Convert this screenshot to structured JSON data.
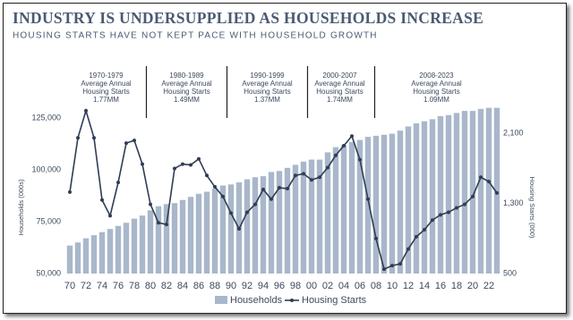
{
  "chart_data": {
    "type": "bar-line",
    "title": "INDUSTRY IS UNDERSUPPLIED AS HOUSEHOLDS INCREASE",
    "subtitle": "HOUSING STARTS HAVE NOT KEPT PACE WITH HOUSEHOLD GROWTH",
    "y_label": "Households (000s)",
    "y2_label": "Housing Starts (000)",
    "categories": [
      "70",
      null,
      "72",
      null,
      "74",
      null,
      "76",
      null,
      "78",
      null,
      "80",
      null,
      "82",
      null,
      "84",
      null,
      "86",
      null,
      "88",
      null,
      "90",
      null,
      "92",
      null,
      "94",
      null,
      "96",
      null,
      "98",
      null,
      "00",
      null,
      "02",
      null,
      "04",
      null,
      "06",
      null,
      "08",
      null,
      "10",
      null,
      "12",
      null,
      "14",
      null,
      "16",
      null,
      "18",
      null,
      "20",
      null,
      "22",
      null
    ],
    "series": [
      {
        "name": "Households",
        "type": "bar",
        "color": "#a9b7cb",
        "values": [
          63500,
          65000,
          67000,
          68500,
          70000,
          71500,
          73000,
          74500,
          76500,
          78000,
          80500,
          82500,
          83500,
          84000,
          85500,
          87000,
          88500,
          89500,
          91000,
          92500,
          93000,
          94000,
          95500,
          96500,
          97000,
          99000,
          99500,
          101000,
          102500,
          104000,
          105000,
          105000,
          108500,
          111000,
          112000,
          113500,
          114500,
          116000,
          116500,
          117000,
          117500,
          119000,
          121000,
          122500,
          123500,
          124500,
          126000,
          126500,
          127500,
          128500,
          128500,
          129500,
          130000,
          130000
        ]
      },
      {
        "name": "Housing Starts",
        "type": "line",
        "axis": "y2",
        "color": "#2f3d55",
        "values": [
          1430,
          2050,
          2360,
          2050,
          1340,
          1160,
          1540,
          1990,
          2020,
          1750,
          1290,
          1080,
          1060,
          1700,
          1750,
          1740,
          1810,
          1620,
          1490,
          1380,
          1190,
          1010,
          1200,
          1290,
          1460,
          1350,
          1480,
          1470,
          1620,
          1640,
          1570,
          1600,
          1710,
          1850,
          1960,
          2070,
          1800,
          1350,
          900,
          550,
          590,
          610,
          780,
          920,
          1000,
          1110,
          1170,
          1200,
          1250,
          1290,
          1380,
          1600,
          1550,
          1420
        ]
      }
    ],
    "ylim": [
      50000,
      132000
    ],
    "yticks": [
      {
        "value": 50000,
        "label": "50,000"
      },
      {
        "value": 75000,
        "label": "75,000"
      },
      {
        "value": 100000,
        "label": "100,000"
      },
      {
        "value": 125000,
        "label": "125,000"
      }
    ],
    "y2lim": [
      500,
      2440
    ],
    "y2ticks": [
      500,
      {
        "value": 1300,
        "label": "1,300"
      },
      {
        "value": 2100,
        "label": "2,100"
      }
    ],
    "annotations": [
      [
        "1970-1979",
        "Average Annual",
        "Housing Starts",
        "1.77MM"
      ],
      [
        "1980-1989",
        "Average Annual",
        "Housing Starts",
        "1.49MM"
      ],
      [
        "1990-1999",
        "Average Annual",
        "Housing Starts",
        "1.37MM"
      ],
      [
        "2000-2007",
        "Average Annual",
        "Housing Starts",
        "1.74MM"
      ],
      [
        "2008-2023",
        "Average Annual",
        "Housing Starts",
        "1.09MM"
      ]
    ],
    "legend": "bottom"
  }
}
